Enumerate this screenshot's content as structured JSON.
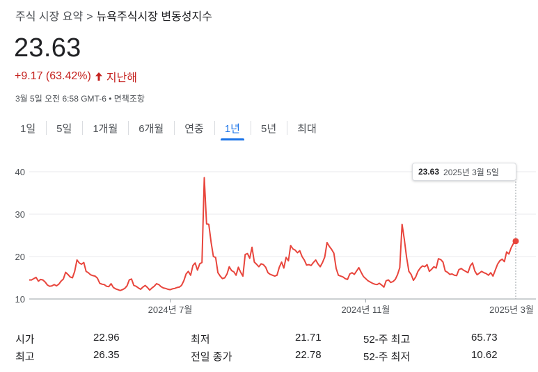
{
  "breadcrumb": {
    "parent": "주식 시장 요약",
    "separator": ">",
    "current": "뉴욕주식시장 변동성지수"
  },
  "quote": {
    "price": "23.63",
    "change": "+9.17 (63.42%)",
    "change_period": "지난해",
    "timestamp": "3월 5일 오전 6:58 GMT-6 • 면책조항"
  },
  "tabs": [
    {
      "label": "1일"
    },
    {
      "label": "5일"
    },
    {
      "label": "1개월"
    },
    {
      "label": "6개월"
    },
    {
      "label": "연중"
    },
    {
      "label": "1년",
      "active": true
    },
    {
      "label": "5년"
    },
    {
      "label": "최대"
    }
  ],
  "tooltip": {
    "value": "23.63",
    "date": "2025년 3월 5일"
  },
  "colors": {
    "line": "#e8453c",
    "negative": "#c5221f",
    "accent": "#1a73e8",
    "grid": "#e8eaed"
  },
  "stats": {
    "left": [
      {
        "label": "시가",
        "value": "22.96"
      },
      {
        "label": "최고",
        "value": "26.35"
      }
    ],
    "middle": [
      {
        "label": "최저",
        "value": "21.71"
      },
      {
        "label": "전일 종가",
        "value": "22.78"
      }
    ],
    "right": [
      {
        "label": "52-주 최고",
        "value": "65.73"
      },
      {
        "label": "52-주 최저",
        "value": "10.62"
      }
    ]
  },
  "chart_data": {
    "type": "line",
    "title": "",
    "xlabel": "",
    "ylabel": "",
    "ylim": [
      10,
      40
    ],
    "yticks": [
      10,
      20,
      30,
      40
    ],
    "xticks": [
      {
        "label": "2024년 7월",
        "index": 62
      },
      {
        "label": "2024년 11월",
        "index": 148
      },
      {
        "label": "2025년 3월",
        "index": 245
      }
    ],
    "grid": true,
    "series": [
      {
        "values": [
          14.5,
          14.5,
          14.8,
          15.1,
          14.2,
          14.6,
          14.5,
          14.0,
          13.3,
          13.0,
          13.1,
          13.4,
          13.1,
          13.5,
          14.2,
          14.7,
          16.3,
          15.8,
          15.2,
          15.0,
          16.5,
          19.2,
          18.5,
          18.2,
          18.6,
          16.5,
          16.2,
          15.7,
          15.5,
          15.4,
          14.9,
          13.7,
          13.5,
          13.4,
          13.0,
          12.9,
          13.6,
          12.7,
          12.4,
          12.2,
          12.0,
          12.2,
          12.5,
          13.1,
          14.5,
          14.7,
          13.2,
          13.0,
          12.6,
          12.3,
          12.8,
          13.2,
          12.7,
          12.1,
          12.6,
          13.0,
          13.6,
          13.4,
          12.9,
          12.6,
          12.5,
          12.3,
          12.2,
          12.4,
          12.5,
          12.7,
          12.8,
          13.2,
          14.3,
          15.9,
          16.5,
          15.6,
          17.9,
          18.5,
          16.8,
          18.3,
          18.6,
          38.6,
          27.7,
          27.6,
          23.4,
          20.0,
          19.8,
          16.2,
          15.4,
          14.8,
          15.0,
          15.9,
          17.6,
          16.7,
          16.4,
          15.6,
          17.5,
          16.3,
          15.4,
          20.5,
          20.7,
          19.6,
          22.2,
          18.7,
          18.2,
          17.6,
          18.3,
          18.1,
          17.5,
          16.2,
          15.8,
          15.6,
          15.4,
          15.6,
          17.5,
          18.7,
          17.3,
          19.8,
          19.0,
          22.6,
          21.8,
          21.5,
          20.9,
          21.4,
          20.0,
          19.2,
          18.0,
          18.1,
          17.9,
          18.6,
          19.2,
          18.3,
          17.6,
          18.6,
          19.9,
          23.3,
          22.4,
          21.7,
          20.8,
          17.2,
          15.6,
          15.4,
          15.2,
          14.8,
          14.6,
          15.9,
          16.2,
          15.8,
          16.6,
          17.4,
          16.3,
          15.3,
          14.8,
          14.3,
          14.0,
          13.7,
          13.5,
          13.4,
          13.7,
          13.3,
          12.8,
          14.3,
          14.5,
          13.9,
          14.1,
          14.6,
          15.7,
          17.4,
          27.6,
          24.1,
          19.8,
          16.5,
          15.8,
          14.4,
          15.2,
          16.5,
          17.3,
          17.8,
          17.6,
          18.1,
          16.5,
          17.0,
          17.6,
          17.3,
          19.5,
          19.3,
          18.7,
          16.6,
          16.3,
          15.8,
          15.9,
          15.6,
          15.5,
          16.9,
          17.2,
          16.8,
          16.5,
          16.2,
          17.8,
          18.5,
          16.6,
          15.7,
          16.1,
          16.5,
          16.2,
          16.0,
          15.6,
          16.2,
          15.4,
          16.8,
          18.2,
          19.0,
          19.4,
          18.8,
          21.1,
          20.6,
          22.1,
          23.1,
          23.63
        ]
      }
    ]
  }
}
